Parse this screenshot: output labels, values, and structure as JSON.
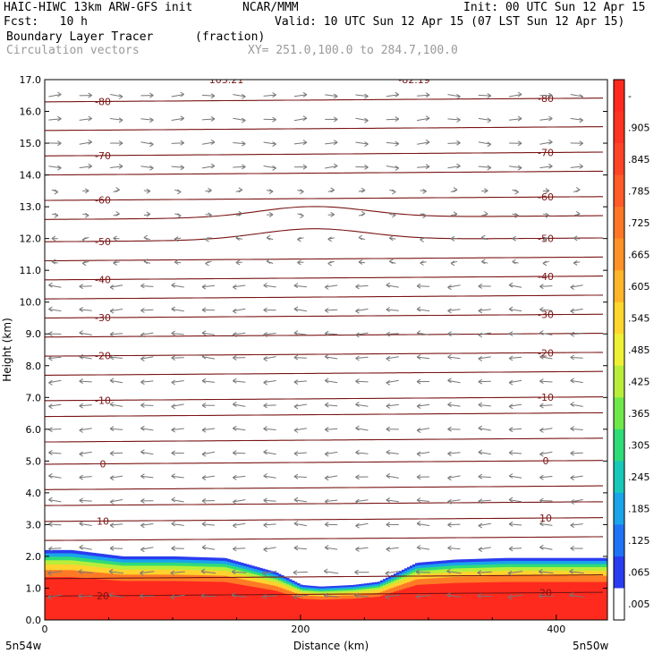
{
  "header": {
    "model_line": "HAIC-HIWC 13km ARW-GFS init",
    "institution": "NCAR/MMM",
    "init_line": "Init: 00 UTC Sun 12 Apr 15",
    "fcst_line": "Fcst:   10 h",
    "valid_line": "Valid: 10 UTC Sun 12 Apr 15 (07 LST Sun 12 Apr 15)",
    "field_line": "Boundary Layer Tracer",
    "field_units": "(fraction)",
    "vector_line": "Circulation vectors",
    "xy_line": "XY= 251.0,100.0 to 284.7,100.0"
  },
  "chart_data": {
    "type": "heatmap",
    "xlabel": "Distance (km)",
    "ylabel": "Height (km)",
    "xlim": [
      0,
      440
    ],
    "ylim": [
      0,
      17
    ],
    "x_ticks": [
      "0",
      "200",
      "400"
    ],
    "y_ticks": [
      "0.0",
      "1.0",
      "2.0",
      "3.0",
      "4.0",
      "5.0",
      "6.0",
      "7.0",
      "8.0",
      "9.0",
      "10.0",
      "11.0",
      "12.0",
      "13.0",
      "14.0",
      "15.0",
      "16.0",
      "17.0"
    ],
    "corner_labels": {
      "left": "5n54w",
      "right": "5n50w"
    },
    "top_clipped_labels": [
      "103.21",
      "-82.19"
    ],
    "colorbar": {
      "tick_labels": [
        "-",
        ".905",
        ".845",
        ".785",
        ".725",
        ".665",
        ".605",
        ".545",
        ".485",
        ".425",
        ".365",
        ".305",
        ".245",
        ".185",
        ".125",
        ".065",
        ".005"
      ],
      "colors_top_to_bottom": [
        "#ff2a1e",
        "#ff3322",
        "#ff4426",
        "#ff5b28",
        "#ff7626",
        "#ff9226",
        "#ffb52a",
        "#ffd62e",
        "#eef036",
        "#b8ee3a",
        "#6fe84a",
        "#2fdc78",
        "#19c8b8",
        "#1aa4ea",
        "#1f74f6",
        "#2a3cf0",
        "#ffffff"
      ]
    },
    "boundary_layer_top": {
      "x_km": [
        0,
        20,
        60,
        100,
        140,
        180,
        200,
        215,
        240,
        260,
        290,
        320,
        360,
        400,
        440
      ],
      "top_km": [
        2.2,
        2.2,
        2.0,
        2.0,
        1.95,
        1.5,
        1.1,
        1.05,
        1.1,
        1.2,
        1.8,
        1.9,
        1.95,
        1.95,
        1.95
      ]
    },
    "temperature_contours": {
      "label_unit": "degC",
      "levels": [
        {
          "value": -80,
          "height_km": 16.3,
          "label": "-80"
        },
        {
          "value": -70,
          "height_km": 14.6,
          "label": "-70"
        },
        {
          "value": -60,
          "height_km": 13.2,
          "label": "-60"
        },
        {
          "value": -50,
          "height_km": 11.9,
          "label": "-50"
        },
        {
          "value": -40,
          "height_km": 10.7,
          "label": "-40"
        },
        {
          "value": -30,
          "height_km": 9.5,
          "label": "-30"
        },
        {
          "value": -20,
          "height_km": 8.3,
          "label": "-20"
        },
        {
          "value": -10,
          "height_km": 6.9,
          "label": "-10"
        },
        {
          "value": 0,
          "height_km": 4.9,
          "label": "0"
        },
        {
          "value": 10,
          "height_km": 3.1,
          "label": "10"
        },
        {
          "value": 20,
          "height_km": 0.75,
          "label": "20"
        }
      ],
      "extra_line_heights_km": [
        17.0,
        15.4,
        14.0,
        12.6,
        11.3,
        10.1,
        8.9,
        7.7,
        6.4,
        5.6,
        4.1,
        3.6,
        2.5,
        1.3
      ]
    },
    "vectors": {
      "upper_direction": "eastward",
      "lower_direction": "westward",
      "transition_km": 12.5
    },
    "grid": false,
    "legend": "right colorbar"
  }
}
